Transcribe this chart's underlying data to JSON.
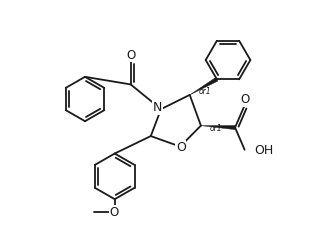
{
  "bg_color": "#ffffff",
  "line_color": "#1a1a1a",
  "lw": 1.3,
  "figsize": [
    3.22,
    2.5
  ],
  "dpi": 100,
  "xlim": [
    0,
    10
  ],
  "ylim": [
    0,
    7.8
  ]
}
